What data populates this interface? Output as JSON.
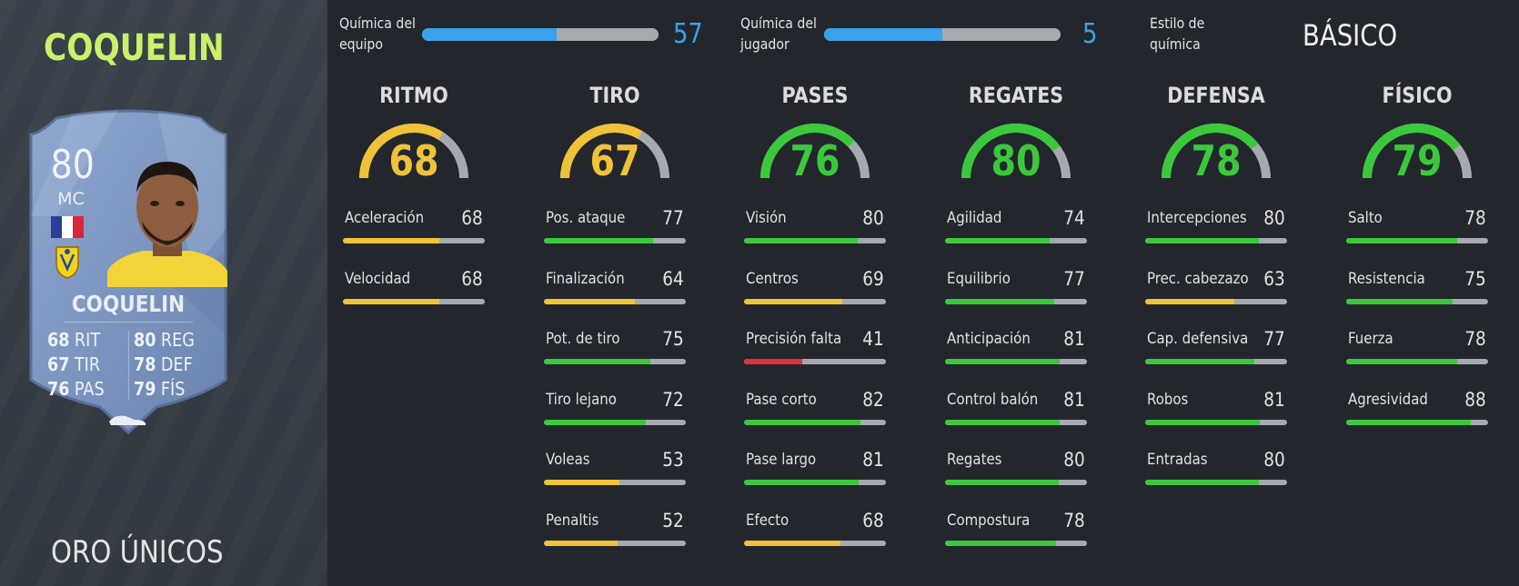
{
  "player": {
    "name": "COQUELIN",
    "card_type": "ORO ÚNICOS",
    "card": {
      "rating": "80",
      "position": "MC",
      "name": "COQUELIN",
      "stats": [
        {
          "value": "68",
          "label": "RIT"
        },
        {
          "value": "80",
          "label": "REG"
        },
        {
          "value": "67",
          "label": "TIR"
        },
        {
          "value": "78",
          "label": "DEF"
        },
        {
          "value": "76",
          "label": "PAS"
        },
        {
          "value": "79",
          "label": "FÍS"
        }
      ]
    }
  },
  "chemistry": {
    "team": {
      "label_line1": "Química del",
      "label_line2": "equipo",
      "value": "57",
      "fill_fraction": 0.57
    },
    "player": {
      "label_line1": "Química del",
      "label_line2": "jugador",
      "value": "5",
      "fill_fraction": 0.5
    },
    "style": {
      "label_line1": "Estilo de",
      "label_line2": "química",
      "value": "BÁSICO"
    }
  },
  "colors": {
    "accent_blue": "#3aa2ea",
    "name_green": "#c8f26a",
    "yellow": "#f0c238",
    "green": "#3cc83c",
    "red": "#e0303a",
    "track": "#a6a9ad"
  },
  "categories": [
    {
      "title": "RITMO",
      "value": "68",
      "attributes": [
        {
          "name": "Aceleración",
          "value": "68"
        },
        {
          "name": "Velocidad",
          "value": "68"
        }
      ]
    },
    {
      "title": "TIRO",
      "value": "67",
      "attributes": [
        {
          "name": "Pos. ataque",
          "value": "77"
        },
        {
          "name": "Finalización",
          "value": "64"
        },
        {
          "name": "Pot. de tiro",
          "value": "75"
        },
        {
          "name": "Tiro lejano",
          "value": "72"
        },
        {
          "name": "Voleas",
          "value": "53"
        },
        {
          "name": "Penaltis",
          "value": "52"
        }
      ]
    },
    {
      "title": "PASES",
      "value": "76",
      "attributes": [
        {
          "name": "Visión",
          "value": "80"
        },
        {
          "name": "Centros",
          "value": "69"
        },
        {
          "name": "Precisión falta",
          "value": "41"
        },
        {
          "name": "Pase corto",
          "value": "82"
        },
        {
          "name": "Pase largo",
          "value": "81"
        },
        {
          "name": "Efecto",
          "value": "68"
        }
      ]
    },
    {
      "title": "REGATES",
      "value": "80",
      "attributes": [
        {
          "name": "Agilidad",
          "value": "74"
        },
        {
          "name": "Equilibrio",
          "value": "77"
        },
        {
          "name": "Anticipación",
          "value": "81"
        },
        {
          "name": "Control balón",
          "value": "81"
        },
        {
          "name": "Regates",
          "value": "80"
        },
        {
          "name": "Compostura",
          "value": "78"
        }
      ]
    },
    {
      "title": "DEFENSA",
      "value": "78",
      "attributes": [
        {
          "name": "Intercepciones",
          "value": "80"
        },
        {
          "name": "Prec. cabezazo",
          "value": "63"
        },
        {
          "name": "Cap. defensiva",
          "value": "77"
        },
        {
          "name": "Robos",
          "value": "81"
        },
        {
          "name": "Entradas",
          "value": "80"
        }
      ]
    },
    {
      "title": "FÍSICO",
      "value": "79",
      "attributes": [
        {
          "name": "Salto",
          "value": "78"
        },
        {
          "name": "Resistencia",
          "value": "75"
        },
        {
          "name": "Fuerza",
          "value": "78"
        },
        {
          "name": "Agresividad",
          "value": "88"
        }
      ]
    }
  ]
}
